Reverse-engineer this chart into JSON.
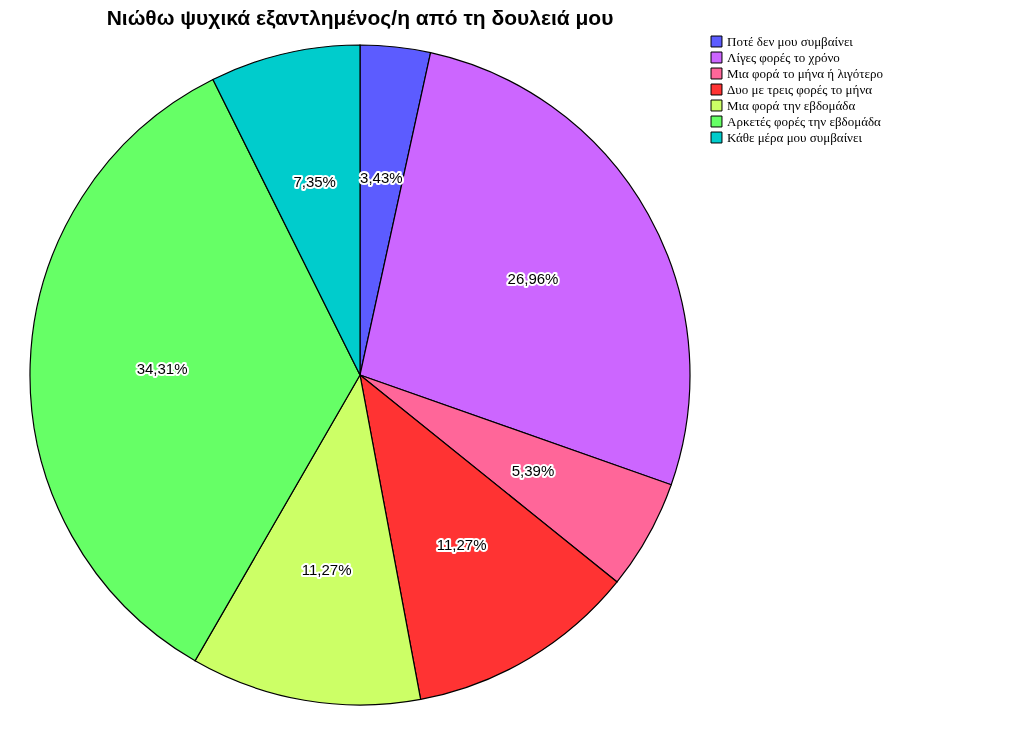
{
  "chart_data": {
    "type": "pie",
    "title": "Νιώθω ψυχικά εξαντλημένος/η από τη δουλειά μου",
    "categories": [
      "Ποτέ δεν μου συμβαίνει",
      "Λίγες φορές το χρόνο",
      "Μια φορά το μήνα ή λιγότερο",
      "Δυο με τρεις φορές το μήνα",
      "Μια φορά την εβδομάδα",
      "Αρκετές φορές την εβδομάδα",
      "Κάθε μέρα μου συμβαίνει"
    ],
    "values": [
      3.43,
      26.96,
      5.39,
      11.27,
      11.27,
      34.31,
      7.35
    ],
    "value_labels": [
      "3,43%",
      "26,96%",
      "5,39%",
      "11,27%",
      "11,27%",
      "34,31%",
      "7,35%"
    ],
    "colors": [
      "#5c5cff",
      "#cc66ff",
      "#ff6699",
      "#ff3333",
      "#ccff66",
      "#66ff66",
      "#00cccc"
    ],
    "legend": "top right"
  }
}
